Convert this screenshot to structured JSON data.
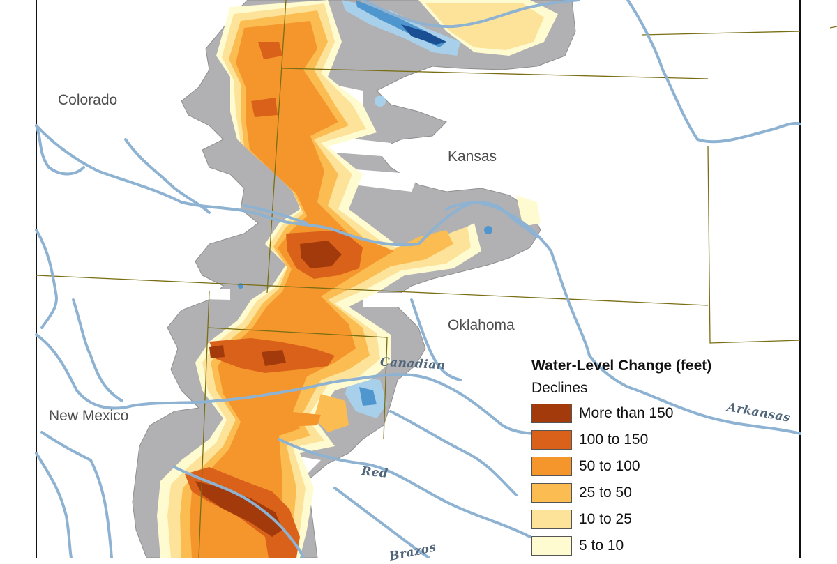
{
  "states": {
    "colorado": "Colorado",
    "kansas": "Kansas",
    "oklahoma": "Oklahoma",
    "new_mexico": "New Mexico"
  },
  "rivers": {
    "canadian": "Canadian",
    "arkansas": "Arkansas",
    "red": "Red",
    "brazos": "Brazos"
  },
  "legend": {
    "title": "Water-Level Change (feet)",
    "subtitle": "Declines",
    "items": [
      {
        "label": "More than 150",
        "color": "#a33a0c"
      },
      {
        "label": "100 to 150",
        "color": "#d9611a"
      },
      {
        "label": "50 to 100",
        "color": "#f5962d"
      },
      {
        "label": "25 to 50",
        "color": "#fbbd52"
      },
      {
        "label": "10 to 25",
        "color": "#fde39a"
      },
      {
        "label": "5 to 10",
        "color": "#fffbd1"
      }
    ]
  },
  "colors": {
    "aquifer": "#b1b1b3",
    "river": "#8eb2d2",
    "border": "#7a6e14",
    "rise_light": "#a9d0ea",
    "rise_mid": "#4f96cf",
    "rise_dark": "#1a4f94"
  }
}
